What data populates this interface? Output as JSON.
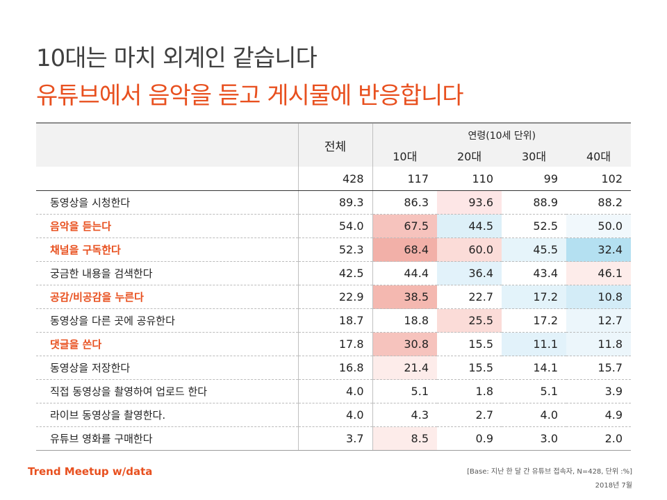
{
  "title_line1": "10대는 마치 외계인 같습니다",
  "title_line2": "유튜브에서 음악을 듣고 게시물에 반응합니다",
  "table": {
    "total_header": "전체",
    "age_group_header": "연령(10세 단위)",
    "age_headers": [
      "10대",
      "20대",
      "30대",
      "40대"
    ],
    "n_row": [
      "428",
      "117",
      "110",
      "99",
      "102"
    ],
    "rows": [
      {
        "label": "동영상을 시청한다",
        "highlight": false,
        "values": [
          "89.3",
          "86.3",
          "93.6",
          "88.9",
          "88.2"
        ]
      },
      {
        "label": "음악을 듣는다",
        "highlight": true,
        "values": [
          "54.0",
          "67.5",
          "44.5",
          "52.5",
          "50.0"
        ]
      },
      {
        "label": "채널을 구독한다",
        "highlight": true,
        "values": [
          "52.3",
          "68.4",
          "60.0",
          "45.5",
          "32.4"
        ]
      },
      {
        "label": "궁금한 내용을 검색한다",
        "highlight": false,
        "values": [
          "42.5",
          "44.4",
          "36.4",
          "43.4",
          "46.1"
        ]
      },
      {
        "label": "공감/비공감을 누른다",
        "highlight": true,
        "values": [
          "22.9",
          "38.5",
          "22.7",
          "17.2",
          "10.8"
        ]
      },
      {
        "label": "동영상을 다른 곳에 공유한다",
        "highlight": false,
        "values": [
          "18.7",
          "18.8",
          "25.5",
          "17.2",
          "12.7"
        ]
      },
      {
        "label": "댓글을 쓴다",
        "highlight": true,
        "values": [
          "17.8",
          "30.8",
          "15.5",
          "11.1",
          "11.8"
        ]
      },
      {
        "label": "동영상을 저장한다",
        "highlight": false,
        "values": [
          "16.8",
          "21.4",
          "15.5",
          "14.1",
          "15.7"
        ]
      },
      {
        "label": "직접 동영상을 촬영하여 업로드 한다",
        "highlight": false,
        "values": [
          "4.0",
          "5.1",
          "1.8",
          "5.1",
          "3.9"
        ]
      },
      {
        "label": "라이브 동영상을 촬영한다.",
        "highlight": false,
        "values": [
          "4.0",
          "4.3",
          "2.7",
          "4.0",
          "4.9"
        ]
      },
      {
        "label": "유튜브 영화를 구매한다",
        "highlight": false,
        "values": [
          "3.7",
          "8.5",
          "0.9",
          "3.0",
          "2.0"
        ]
      }
    ],
    "cell_colors": [
      [
        "#ffffff",
        "#fde6e6",
        "#ffffff",
        "#ffffff"
      ],
      [
        "#f6c3bd",
        "#ddf0f8",
        "#ffffff",
        "#f1f8fc"
      ],
      [
        "#f2b0a8",
        "#fbdcd8",
        "#e6f4fa",
        "#b4e0f1"
      ],
      [
        "#ffffff",
        "#e2f2fa",
        "#ffffff",
        "#fdecea"
      ],
      [
        "#f4b8b0",
        "#ffffff",
        "#e3f3fa",
        "#d3ecf7"
      ],
      [
        "#ffffff",
        "#fbdcd8",
        "#ffffff",
        "#ecf6fb"
      ],
      [
        "#f6c3bd",
        "#ffffff",
        "#e2f2fa",
        "#ecf6fb"
      ],
      [
        "#fdecea",
        "#ffffff",
        "#ffffff",
        "#ffffff"
      ],
      [
        "#ffffff",
        "#ffffff",
        "#ffffff",
        "#ffffff"
      ],
      [
        "#ffffff",
        "#ffffff",
        "#ffffff",
        "#ffffff"
      ],
      [
        "#fdecea",
        "#ffffff",
        "#ffffff",
        "#ffffff"
      ]
    ]
  },
  "footer": {
    "logo_text": "Trend Meetup",
    "logo_suffix": "w/data",
    "base_note": "[Base:  지난 한 달 간 유튜브 접속자, N=428, 단위 :%]",
    "date": "2018년 7월"
  },
  "colors": {
    "accent": "#e8501f",
    "title_gray": "#404040",
    "header_bg": "#f2f2f2"
  }
}
